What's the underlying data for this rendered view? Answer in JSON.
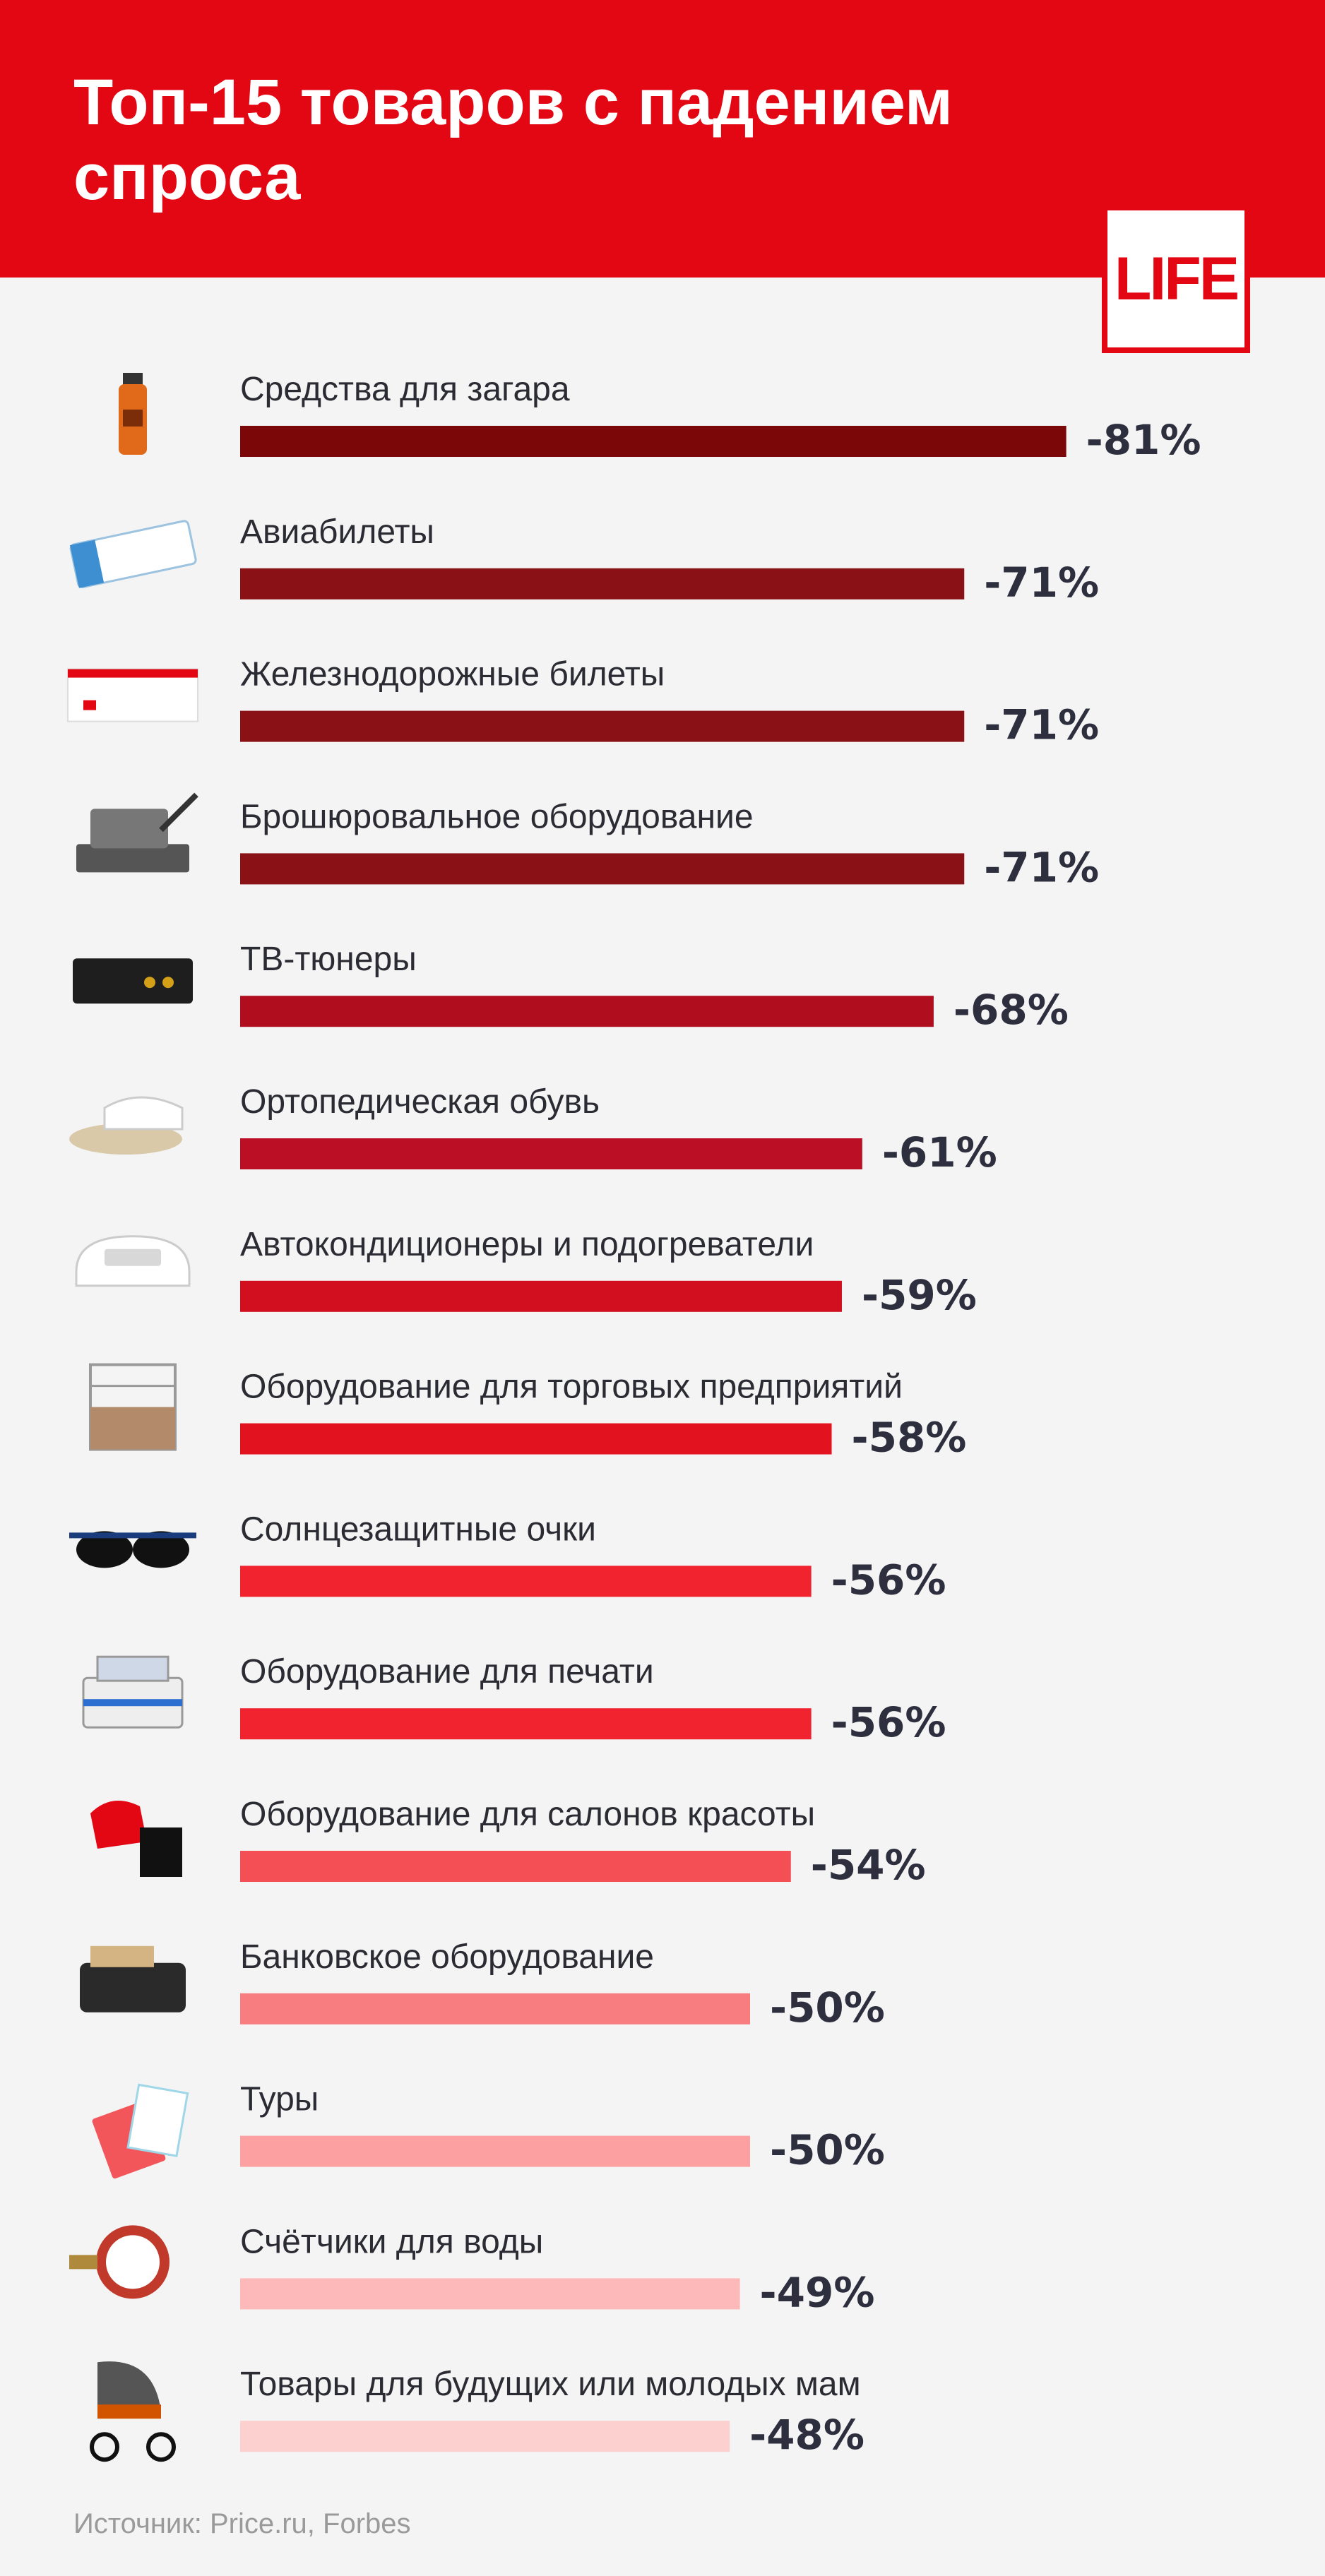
{
  "header": {
    "title": "Топ-15 товаров с падением спроса",
    "logo": "LIFE"
  },
  "colors": {
    "header_bg": "#e30613",
    "background": "#f4f4f4",
    "value_text": "#2d2f3e"
  },
  "chart_data": {
    "type": "bar",
    "orientation": "horizontal",
    "title": "Топ-15 товаров с падением спроса",
    "categories": [
      "Средства для загара",
      "Авиабилеты",
      "Железнодорожные билеты",
      "Брошюровальное оборудование",
      "ТВ-тюнеры",
      "Ортопедическая обувь",
      "Автокондиционеры и подогреватели",
      "Оборудование для торговых предприятий",
      "Солнцезащитные очки",
      "Оборудование для печати",
      "Оборудование для салонов красоты",
      "Банковское оборудование",
      "Туры",
      "Счётчики для воды",
      "Товары для будущих или молодых мам"
    ],
    "values": [
      -81,
      -71,
      -71,
      -71,
      -68,
      -61,
      -59,
      -58,
      -56,
      -56,
      -54,
      -50,
      -50,
      -49,
      -48
    ],
    "value_labels": [
      "-81%",
      "-71%",
      "-71%",
      "-71%",
      "-68%",
      "-61%",
      "-59%",
      "-58%",
      "-56%",
      "-56%",
      "-54%",
      "-50%",
      "-50%",
      "-49%",
      "-48%"
    ],
    "bar_colors": [
      "#7b0708",
      "#8a1115",
      "#8a1115",
      "#8a1115",
      "#b00d1f",
      "#bb0f25",
      "#d10f1e",
      "#e3121f",
      "#f0232f",
      "#f0232f",
      "#f44f55",
      "#f87d80",
      "#fca0a2",
      "#fdb9ba",
      "#fdd0d0"
    ],
    "icons": [
      "sunscreen-bottle-icon",
      "plane-ticket-icon",
      "train-ticket-icon",
      "binding-machine-icon",
      "tv-tuner-icon",
      "orthopedic-shoe-icon",
      "car-air-conditioner-icon",
      "display-counter-icon",
      "sunglasses-icon",
      "printing-machine-icon",
      "salon-chair-icon",
      "money-counter-icon",
      "travel-documents-icon",
      "water-meter-icon",
      "baby-stroller-icon"
    ],
    "legend": "none",
    "grid": false
  },
  "source": "Источник: Price.ru, Forbes"
}
